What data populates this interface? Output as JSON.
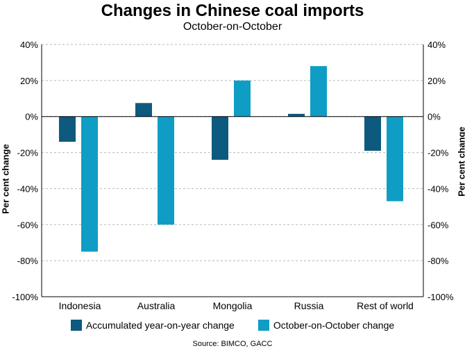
{
  "chart_data": {
    "type": "bar",
    "title": "Changes in Chinese coal imports",
    "subtitle": "October-on-October",
    "ylabel": "Per cent change",
    "ylabel_right": "Per cent change",
    "categories": [
      "Indonesia",
      "Australia",
      "Mongolia",
      "Russia",
      "Rest of world"
    ],
    "series": [
      {
        "name": "Accumulated year-on-year change",
        "color": "#0d5a7e",
        "values": [
          -14,
          7.5,
          -24,
          1.5,
          -19
        ]
      },
      {
        "name": "October-on-October change",
        "color": "#109dc5",
        "values": [
          -75,
          -60,
          20,
          28,
          -47
        ]
      }
    ],
    "ylim": [
      -100,
      40
    ],
    "yticks": [
      40,
      20,
      0,
      -20,
      -40,
      -60,
      -80,
      -100
    ],
    "ytick_labels": [
      "40%",
      "20%",
      "0%",
      "-20%",
      "-40%",
      "-60%",
      "-80%",
      "-100%"
    ],
    "grid": true,
    "legend_position": "bottom",
    "source": "Source: BIMCO, GACC"
  }
}
